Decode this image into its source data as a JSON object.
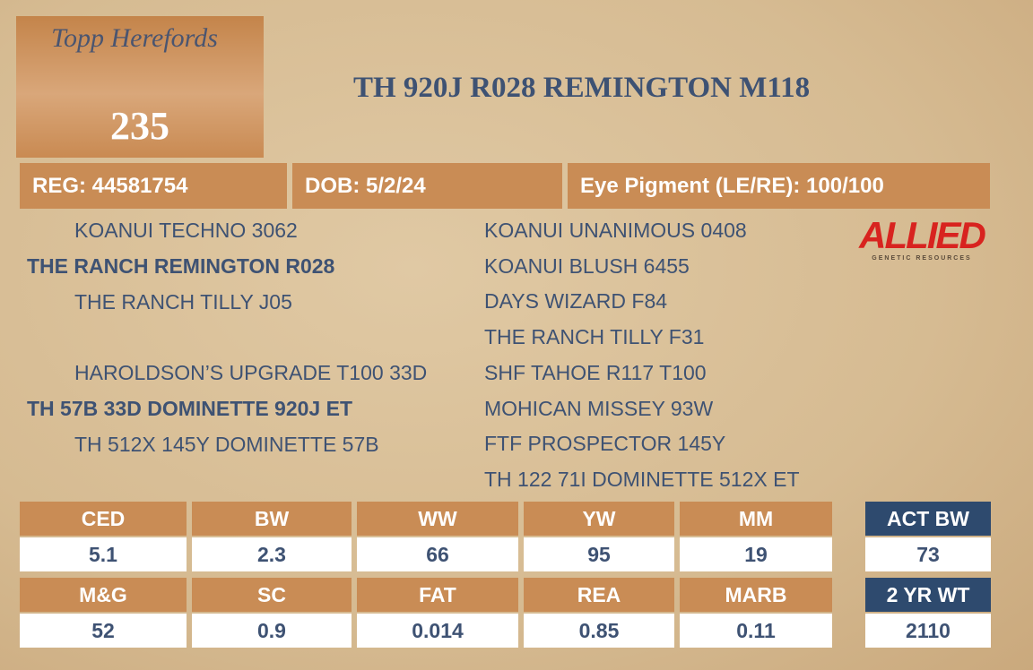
{
  "header": {
    "logo": "Topp Herefords",
    "lot": "235",
    "title": "TH 920J R028 REMINGTON M118"
  },
  "info": [
    "REG: 44581754",
    "DOB: 5/2/24",
    "Eye Pigment (LE/RE): 100/100"
  ],
  "pedigree": {
    "sire_side": [
      "KOANUI TECHNO 3062",
      "THE RANCH REMINGTON R028",
      "THE RANCH TILLY J05"
    ],
    "dam_side": [
      "HAROLDSON’S UPGRADE T100 33D",
      "TH 57B 33D DOMINETTE 920J ET",
      "TH 512X 145Y DOMINETTE 57B"
    ],
    "ancestors": [
      "KOANUI UNANIMOUS 0408",
      "KOANUI BLUSH 6455",
      "DAYS WIZARD F84",
      "THE RANCH TILLY F31",
      "SHF TAHOE R117 T100",
      "MOHICAN MISSEY 93W",
      "FTF PROSPECTOR 145Y",
      "TH 122 71I DOMINETTE 512X ET"
    ]
  },
  "sponsor": {
    "name": "ALLIED",
    "tagline": "GENETIC RESOURCES"
  },
  "epd": [
    {
      "headers": [
        "CED",
        "BW",
        "WW",
        "YW",
        "MM"
      ],
      "values": [
        "5.1",
        "2.3",
        "66",
        "95",
        "19"
      ]
    },
    {
      "headers": [
        "M&G",
        "SC",
        "FAT",
        "REA",
        "MARB"
      ],
      "values": [
        "52",
        "0.9",
        "0.014",
        "0.85",
        "0.11"
      ]
    }
  ],
  "extras": [
    {
      "header": "ACT BW",
      "value": "73"
    },
    {
      "header": "2 YR WT",
      "value": "2110"
    }
  ]
}
